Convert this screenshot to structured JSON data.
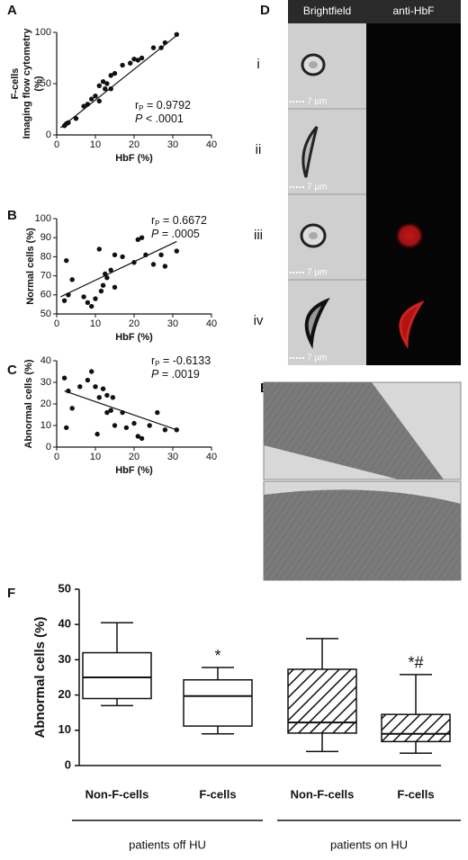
{
  "chart_data": [
    {
      "type": "scatter",
      "xlabel": "HbF (%)",
      "ylabel": [
        "F-cells",
        "Imaging flow cytometry",
        "(%)"
      ],
      "x": [
        2,
        2.5,
        3,
        5,
        7,
        8,
        9,
        10,
        11,
        11,
        12,
        12.5,
        13,
        14,
        14,
        15,
        17,
        19,
        20,
        21,
        22,
        25,
        27,
        28,
        31
      ],
      "values": [
        9,
        11,
        12,
        16,
        28,
        30,
        35,
        38,
        33,
        48,
        52,
        45,
        50,
        45,
        58,
        60,
        68,
        70,
        74,
        73,
        75,
        85,
        85,
        90,
        98
      ],
      "fit": {
        "x": [
          1,
          31
        ],
        "y": [
          7,
          97
        ]
      },
      "stats": [
        {
          "lead": "r",
          "sub": "P",
          "rest": " = 0.9792"
        },
        {
          "lead": "P",
          "rest": " < .0001"
        }
      ],
      "xlim": [
        0,
        40
      ],
      "xticks": [
        0,
        10,
        20,
        30,
        40
      ],
      "ylim": [
        0,
        100
      ],
      "yticks": [
        0,
        50,
        100
      ],
      "color": "#111111",
      "grid": false
    },
    {
      "type": "scatter",
      "xlabel": "HbF (%)",
      "ylabel": "Normal cells  (%)",
      "x": [
        2,
        2.5,
        3,
        4,
        7,
        8,
        9,
        10,
        11,
        11.5,
        12,
        12.5,
        13,
        14,
        15,
        15,
        17,
        20,
        21,
        22,
        23,
        25,
        27,
        28,
        31
      ],
      "values": [
        57,
        78,
        60,
        68,
        59,
        56,
        54,
        58,
        84,
        62,
        65,
        71,
        69,
        73,
        81,
        64,
        80,
        77,
        89,
        90,
        81,
        76,
        81,
        75,
        83
      ],
      "fit": {
        "x": [
          1,
          31
        ],
        "y": [
          59,
          88
        ]
      },
      "stats": [
        {
          "lead": "r",
          "sub": "P",
          "rest": " = 0.6672"
        },
        {
          "lead": "P",
          "rest": " = .0005"
        }
      ],
      "xlim": [
        0,
        40
      ],
      "xticks": [
        0,
        10,
        20,
        30,
        40
      ],
      "ylim": [
        50,
        100
      ],
      "yticks": [
        50,
        60,
        70,
        80,
        90,
        100
      ],
      "color": "#111111",
      "grid": false
    },
    {
      "type": "scatter",
      "xlabel": "HbF (%)",
      "ylabel": "Abnormal cells  (%)",
      "x": [
        2,
        2.5,
        3,
        4,
        6,
        8,
        9,
        10,
        10.5,
        11,
        12,
        13,
        13,
        14,
        14.5,
        15,
        17,
        18,
        20,
        21,
        22,
        24,
        26,
        28,
        31
      ],
      "values": [
        32,
        9,
        26,
        18,
        28,
        31,
        35,
        28,
        6,
        23,
        27,
        24,
        16,
        17,
        23,
        10,
        16,
        9,
        11,
        5,
        4,
        10,
        16,
        8,
        8
      ],
      "fit": {
        "x": [
          2,
          31
        ],
        "y": [
          26,
          8
        ]
      },
      "stats": [
        {
          "lead": "r",
          "sub": "P",
          "rest": " = -0.6133"
        },
        {
          "lead": "P",
          "rest": " = .0019"
        }
      ],
      "xlim": [
        0,
        40
      ],
      "xticks": [
        0,
        10,
        20,
        30,
        40
      ],
      "ylim": [
        0,
        40
      ],
      "yticks": [
        0,
        10,
        20,
        30,
        40
      ],
      "color": "#111111",
      "grid": false
    },
    {
      "type": "box",
      "ylabel": "Abnormal cells (%)",
      "categories": [
        "Non-F-cells",
        "F-cells",
        "Non-F-cells",
        "F-cells"
      ],
      "groups": [
        {
          "name": "patients off HU",
          "members": [
            0,
            1
          ]
        },
        {
          "name": "patients on HU",
          "members": [
            2,
            3
          ]
        }
      ],
      "boxes": [
        {
          "min": 17,
          "q1": 19,
          "median": 25,
          "q3": 32,
          "max": 40.5
        },
        {
          "min": 9,
          "q1": 11.2,
          "median": 19.7,
          "q3": 24.3,
          "max": 27.8
        },
        {
          "min": 4,
          "q1": 9.2,
          "median": 12.2,
          "q3": 27.3,
          "max": 36
        },
        {
          "min": 3.5,
          "q1": 6.8,
          "median": 9,
          "q3": 14.5,
          "max": 25.8
        }
      ],
      "hatched": [
        false,
        false,
        true,
        true
      ],
      "markers": [
        {
          "box": 1,
          "text": "*"
        },
        {
          "box": 3,
          "text": "*#"
        }
      ],
      "ylim": [
        0,
        50
      ],
      "yticks": [
        0,
        10,
        20,
        30,
        40,
        50
      ],
      "color": "#111111",
      "grid": false
    }
  ],
  "figure": {
    "panel_labels": [
      "A",
      "B",
      "C",
      "D",
      "E",
      "F"
    ],
    "imaging": {
      "columns": [
        "Brightfield",
        "anti-HbF"
      ],
      "rows": [
        "i",
        "ii",
        "iii",
        "iv"
      ],
      "scale_bar": "7 µm"
    }
  }
}
